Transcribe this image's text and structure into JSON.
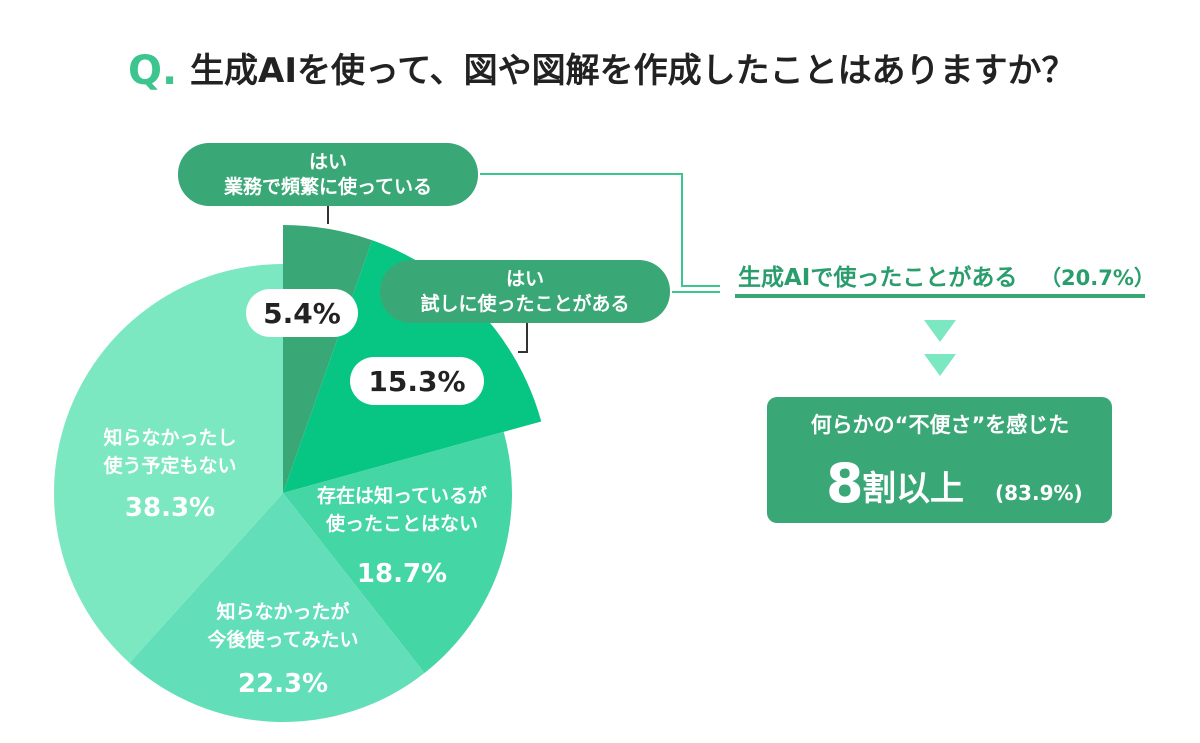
{
  "question": {
    "mark": "Q.",
    "text": "生成AIを使って、図や図解を作成したことはありますか？"
  },
  "colors": {
    "accent": "#3cc58f",
    "dark_green": "#3aa777",
    "bright_green": "#07c684",
    "teal_green": "#44d6a4",
    "mint": "#62dfb8",
    "light_mint": "#7be8c2",
    "summary_text": "#2a9d6c"
  },
  "chart_data": {
    "type": "pie",
    "title": "生成AIを使って、図や図解を作成したことはありますか？",
    "slices": [
      {
        "label": "はい 業務で頻繁に使っている",
        "value": 5.4,
        "display": "5.4%"
      },
      {
        "label": "はい 試しに使ったことがある",
        "value": 15.3,
        "display": "15.3%"
      },
      {
        "label": "存在は知っているが使ったことはない",
        "value": 18.7,
        "display": "18.7%"
      },
      {
        "label": "知らなかったが今後使ってみたい",
        "value": 22.3,
        "display": "22.3%"
      },
      {
        "label": "知らなかったし使う予定もない",
        "value": 38.3,
        "display": "38.3%"
      }
    ]
  },
  "callouts": {
    "frequent": {
      "line1": "はい",
      "line2": "業務で頻繁に使っている"
    },
    "tried": {
      "line1": "はい",
      "line2": "試しに使ったことがある"
    }
  },
  "slice_labels": {
    "never_planned": {
      "line1": "知らなかったし",
      "line2": "使う予定もない"
    },
    "known_unused": {
      "line1": "存在は知っているが",
      "line2": "使ったことはない"
    },
    "want_try": {
      "line1": "知らなかったが",
      "line2": "今後使ってみたい"
    }
  },
  "summary": {
    "used_label": "生成AIで使ったことがある",
    "used_pct": "（20.7%）",
    "box_line1": "何らかの“不便さ”を感じた",
    "box_big": "8",
    "box_mid": "割以上",
    "box_pct": "(83.9%)"
  }
}
